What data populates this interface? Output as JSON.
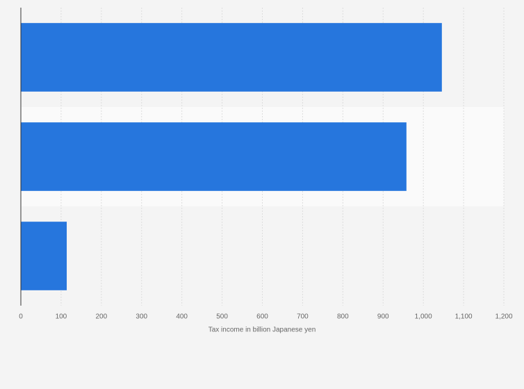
{
  "chart_data": {
    "type": "bar",
    "orientation": "horizontal",
    "categories": [
      null,
      null,
      null
    ],
    "values": [
      1046,
      958,
      114
    ],
    "color": "#2676dd",
    "xlabel": "Tax income in billion Japanese yen",
    "xlim": [
      0,
      1200
    ],
    "xticks": [
      0,
      100,
      200,
      300,
      400,
      500,
      600,
      700,
      800,
      900,
      {
        "value": 1000,
        "label": "1,000"
      },
      {
        "value": 1100,
        "label": "1,100"
      },
      {
        "value": 1200,
        "label": "1,200"
      }
    ],
    "grid": true
  }
}
